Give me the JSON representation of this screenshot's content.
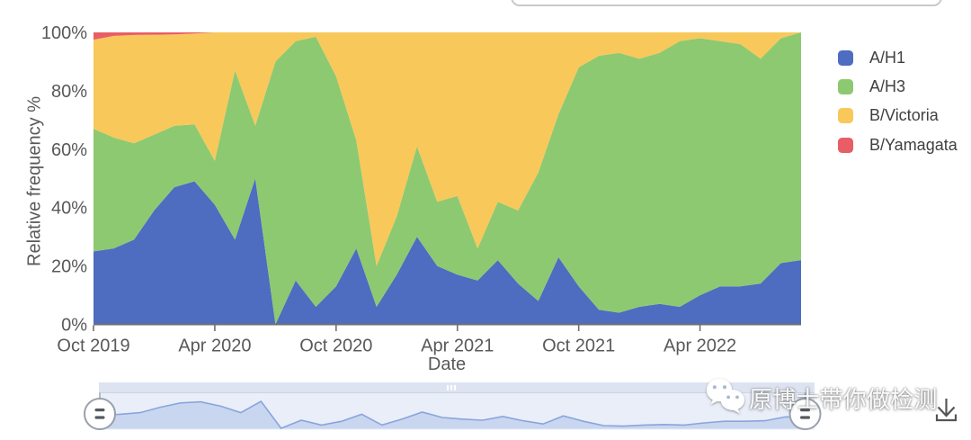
{
  "page": {
    "background": "#ffffff"
  },
  "chart_data": {
    "type": "area",
    "stacked": true,
    "normalized_percent": true,
    "title": "",
    "xlabel": "Date",
    "ylabel": "Relative frequency %",
    "ylim": [
      0,
      100
    ],
    "grid": false,
    "legend_position": "right",
    "x": [
      "Oct 2019",
      "Nov 2019",
      "Dec 2019",
      "Jan 2020",
      "Feb 2020",
      "Mar 2020",
      "Apr 2020",
      "May 2020",
      "Jun 2020",
      "Jul 2020",
      "Aug 2020",
      "Sep 2020",
      "Oct 2020",
      "Nov 2020",
      "Dec 2020",
      "Jan 2021",
      "Feb 2021",
      "Mar 2021",
      "Apr 2021",
      "May 2021",
      "Jun 2021",
      "Jul 2021",
      "Aug 2021",
      "Sep 2021",
      "Oct 2021",
      "Nov 2021",
      "Dec 2021",
      "Jan 2022",
      "Feb 2022",
      "Mar 2022",
      "Apr 2022",
      "May 2022",
      "Jun 2022",
      "Jul 2022",
      "Aug 2022",
      "Sep 2022"
    ],
    "x_tick_indices": [
      0,
      6,
      12,
      18,
      24,
      30
    ],
    "x_tick_labels": [
      "Oct 2019",
      "Apr 2020",
      "Oct 2020",
      "Apr 2021",
      "Oct 2021",
      "Apr 2022"
    ],
    "y_tick_labels": [
      "0%",
      "20%",
      "40%",
      "60%",
      "80%",
      "100%"
    ],
    "y_tick_values": [
      0,
      20,
      40,
      60,
      80,
      100
    ],
    "series": [
      {
        "name": "A/H1",
        "color": "#4E6CC0",
        "values": [
          25,
          26,
          29,
          39,
          47,
          49,
          41,
          29,
          50,
          0,
          15,
          6,
          13,
          26,
          6,
          17,
          30,
          20,
          17,
          15,
          22,
          14,
          8,
          23,
          13,
          5,
          4,
          6,
          7,
          6,
          10,
          13,
          13,
          14,
          21,
          22
        ]
      },
      {
        "name": "A/H3",
        "color": "#8DC971",
        "values": [
          42,
          38,
          33,
          26,
          21,
          19.5,
          15,
          58,
          18,
          90,
          82,
          92.5,
          72,
          37,
          14,
          20,
          31,
          22,
          27,
          11,
          20,
          25,
          44,
          49,
          75,
          87,
          89,
          85,
          86,
          91,
          88,
          84,
          83,
          77,
          77,
          78
        ]
      },
      {
        "name": "B/Victoria",
        "color": "#F8C85A",
        "values": [
          30.5,
          34.8,
          37.1,
          34.2,
          31.3,
          31.1,
          44,
          13,
          32,
          10,
          3,
          1.5,
          15,
          37,
          80,
          63,
          39,
          58,
          56,
          74,
          58,
          61,
          48,
          28,
          12,
          8,
          7,
          9,
          7,
          3,
          2,
          3,
          4,
          9,
          2,
          0
        ]
      },
      {
        "name": "B/Yamagata",
        "color": "#E95D66",
        "values": [
          2.5,
          1.2,
          0.9,
          0.8,
          0.7,
          0.4,
          0,
          0,
          0,
          0,
          0,
          0,
          0,
          0,
          0,
          0,
          0,
          0,
          0,
          0,
          0,
          0,
          0,
          0,
          0,
          0,
          0,
          0,
          0,
          0,
          0,
          0,
          0,
          0,
          0,
          0
        ]
      }
    ]
  },
  "axes": {
    "x_title": "Date",
    "y_title": "Relative frequency %",
    "line_color": "#6f6f6f",
    "tick_label_color": "#595959"
  },
  "scrollbar": {
    "preview_series": "A/H1",
    "background_color": "#e9eef9",
    "thumb_color": "#dde3f1",
    "preview_fill_color": "#c9d6ef",
    "preview_line_color": "#8ba4dc",
    "grip_icon": "grip-lines-icon"
  },
  "watermark": {
    "text": "原博士带你做检测",
    "icon": "wechat-icon"
  },
  "export_button": {
    "icon": "download-icon"
  }
}
